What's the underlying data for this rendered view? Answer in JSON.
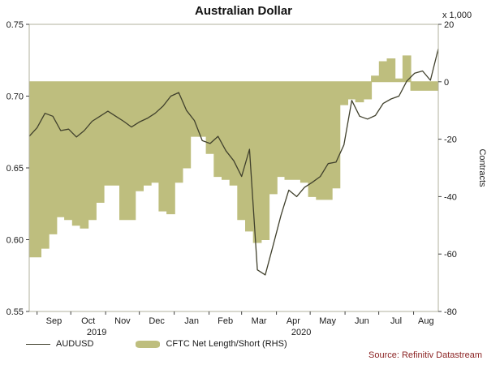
{
  "title": "Australian Dollar",
  "source": "Source: Refinitiv Datastream",
  "colors": {
    "line": "#40402c",
    "area": "#bebe7e",
    "frame": "#b0b09c",
    "tick": "#404040",
    "text": "#1a1a1a",
    "source_text": "#8b2323"
  },
  "legend": [
    {
      "label": "AUDUSD",
      "type": "line"
    },
    {
      "label": "CFTC Net Length/Short (RHS)",
      "type": "area"
    }
  ],
  "chart_data": {
    "type": "line+step-area",
    "title": "Australian Dollar",
    "left_axis": {
      "min": 0.55,
      "max": 0.75,
      "ticks": [
        0.75,
        0.7,
        0.65,
        0.6,
        0.55
      ],
      "decimals": 2,
      "series": "AUDUSD"
    },
    "right_axis": {
      "min": -80,
      "max": 20,
      "ticks": [
        20,
        0,
        -20,
        -40,
        -60,
        -80
      ],
      "unit": "x 1,000",
      "label": "Contracts",
      "series": "CFTC Net Length/Short (RHS)"
    },
    "x_axis": {
      "start": "late Aug 2019",
      "end": "late Aug 2020",
      "boundaries": [
        0.0192,
        0.1016,
        0.1868,
        0.2692,
        0.3544,
        0.4396,
        0.5192,
        0.6044,
        0.6868,
        0.772,
        0.8544,
        0.9396
      ],
      "months": [
        {
          "label": "Sep",
          "center": 0.0604
        },
        {
          "label": "Oct",
          "center": 0.1442
        },
        {
          "label": "Nov",
          "center": 0.228
        },
        {
          "label": "Dec",
          "center": 0.3118
        },
        {
          "label": "Jan",
          "center": 0.397
        },
        {
          "label": "Feb",
          "center": 0.4794
        },
        {
          "label": "Mar",
          "center": 0.5618
        },
        {
          "label": "Apr",
          "center": 0.6456
        },
        {
          "label": "May",
          "center": 0.7294
        },
        {
          "label": "Jun",
          "center": 0.8132
        },
        {
          "label": "Jul",
          "center": 0.897
        },
        {
          "label": "Aug",
          "center": 0.9698
        }
      ],
      "years": [
        {
          "label": "2019",
          "center": 0.165
        },
        {
          "label": "2020",
          "center": 0.665
        }
      ]
    },
    "series": [
      {
        "name": "AUDUSD",
        "axis": "left",
        "type": "line",
        "sampling": "weekly",
        "values": [
          0.672,
          0.678,
          0.688,
          0.686,
          0.676,
          0.677,
          0.6715,
          0.676,
          0.6825,
          0.686,
          0.6895,
          0.686,
          0.6825,
          0.6785,
          0.682,
          0.6845,
          0.688,
          0.693,
          0.7,
          0.7025,
          0.69,
          0.683,
          0.669,
          0.667,
          0.672,
          0.662,
          0.655,
          0.644,
          0.663,
          0.579,
          0.5755,
          0.596,
          0.617,
          0.6345,
          0.63,
          0.6365,
          0.64,
          0.644,
          0.653,
          0.654,
          0.666,
          0.697,
          0.686,
          0.684,
          0.6865,
          0.695,
          0.698,
          0.7,
          0.7105,
          0.716,
          0.7175,
          0.711,
          0.733
        ]
      },
      {
        "name": "CFTC Net Length/Short (RHS)",
        "axis": "right",
        "type": "step-area",
        "sampling": "weekly",
        "unit": "thousand contracts",
        "values": [
          -61,
          -61,
          -58,
          -53,
          -47,
          -48,
          -50,
          -51,
          -48,
          -42,
          -36,
          -36,
          -48,
          -48,
          -38,
          -36,
          -35,
          -45,
          -46,
          -35,
          -30,
          -19,
          -19,
          -25,
          -33,
          -34,
          -36,
          -48,
          -52,
          -56,
          -55,
          -39,
          -33,
          -34,
          -34,
          -35,
          -40,
          -41,
          -41,
          -37,
          -8,
          -6,
          -7,
          -6,
          2,
          7,
          8,
          1,
          9,
          -3,
          -3,
          -3,
          -3
        ]
      }
    ]
  }
}
